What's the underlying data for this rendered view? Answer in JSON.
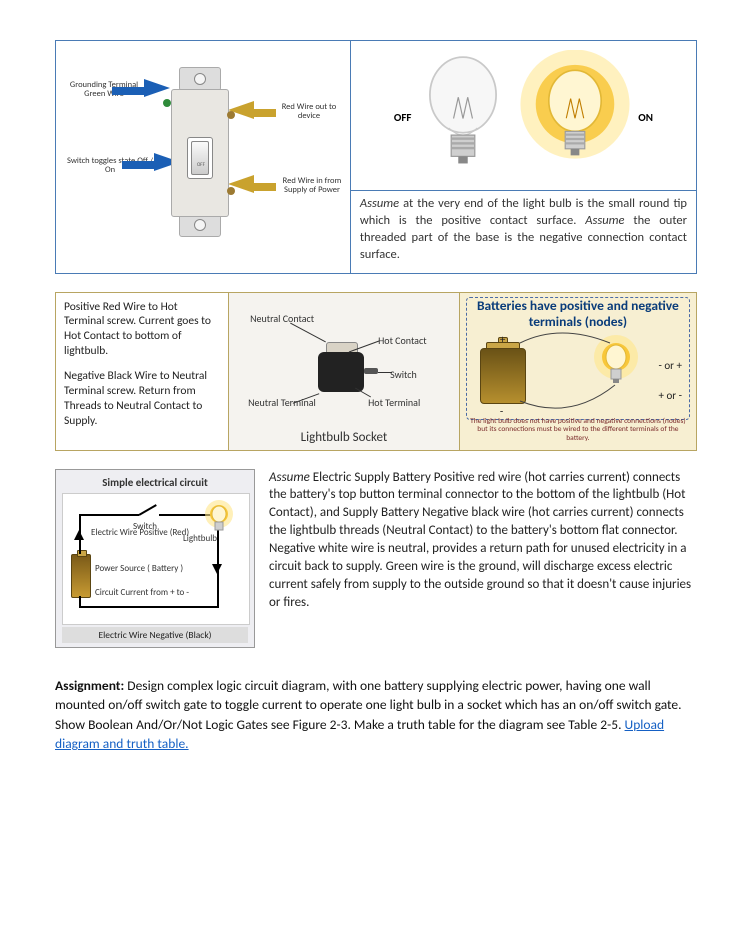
{
  "switch_diagram": {
    "labels": {
      "grounding": "Grounding Terminal\nGreen Wire",
      "toggles": "Switch toggles state Off / On",
      "red_out": "Red Wire out to\ndevice",
      "red_in": "Red Wire in from\nSupply of Power"
    },
    "colors": {
      "blue_arrow": "#1b5fb5",
      "gold_arrow": "#c9a22e",
      "plate": "#e9e7e2",
      "green_screw": "#2e8b3a",
      "brass_screw": "#9c7a32"
    }
  },
  "bulbs": {
    "off_label": "OFF",
    "on_label": "ON",
    "caption_html": "<i>Assume</i> at the very end of the light bulb is the small round tip which is the positive contact surface. <i>Assume</i> the outer threaded part of the base is the negative connection contact surface.",
    "colors": {
      "glow": "#f8c73a",
      "glow_outer": "#ffe68a",
      "glass": "#e7e7e7",
      "filament": "#888",
      "base": "#b9b9b9"
    }
  },
  "socket_strip": {
    "left_text": {
      "p1": "Positive Red Wire to Hot Terminal screw. Current goes to Hot Contact to bottom of lightbulb.",
      "p2": "Negative Black Wire to Neutral Terminal screw.  Return from Threads to Neutral Contact to Supply."
    },
    "socket": {
      "title": "Lightbulb Socket",
      "labels": {
        "neutral_contact": "Neutral\nContact",
        "hot_contact": "Hot Contact",
        "switch": "Switch",
        "hot_terminal": "Hot\nTerminal",
        "neutral_terminal": "Neutral\nTerminal"
      }
    },
    "battery_card": {
      "header": "Batteries have positive and negative terminals (nodes)",
      "or_plus": "- or +",
      "plus_or_minus": "+ or -",
      "footer": "The light bulb does not have positive and negative connections (nodes) but its connections must be wired to the different terminals of the battery.",
      "colors": {
        "card_bg": "#f7efd2",
        "header_text": "#0a3c7a",
        "dash": "#4a6aa5",
        "footer_text": "#7a2a2a"
      }
    }
  },
  "circuit_card": {
    "title": "Simple electrical circuit",
    "labels": {
      "pos": "Electric Wire\nPositive (Red)",
      "switch": "Switch",
      "bulb": "Lightbulb",
      "power": "Power Source\n( Battery )",
      "current": "Circuit Current from + to -"
    },
    "footer": "Electric Wire Negative (Black)",
    "colors": {
      "card_bg": "#eeeef2"
    }
  },
  "paragraph3_html": "<i>Assume</i> Electric Supply Battery Positive red wire (hot carries current) connects the battery's top button terminal connector to the bottom of the lightbulb (Hot Contact), and Supply Battery Negative black wire (hot carries current) connects the lightbulb threads (Neutral Contact) to the battery's bottom flat connector. Negative white wire is neutral, provides a return path for unused electricity in a circuit back to supply.  Green wire is the ground, will discharge excess electric current safely from supply to the outside ground so that it doesn't cause injuries or fires.",
  "assignment": {
    "bold": "Assignment:",
    "body": " Design complex logic circuit diagram, with one battery supplying electric power, having one wall mounted on/off switch gate to toggle current to operate one light bulb in a socket which has an on/off switch gate.  Show Boolean And/Or/Not Logic Gates see Figure 2-3. Make a truth table for the diagram see Table 2-5.  ",
    "link": "Upload diagram and truth table."
  }
}
